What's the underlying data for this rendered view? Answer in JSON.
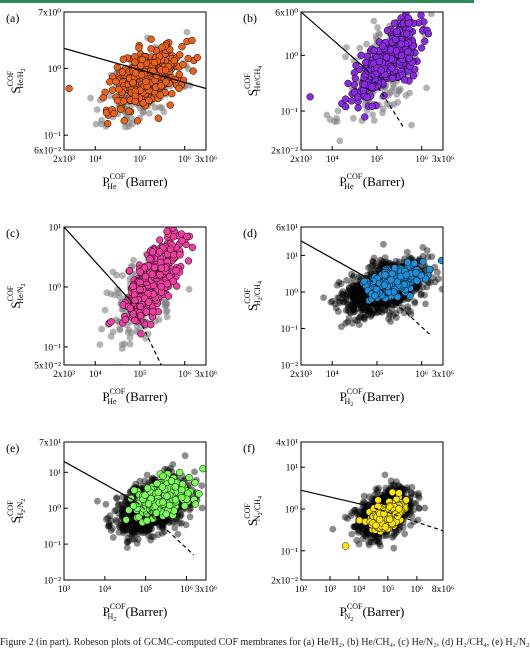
{
  "chart_data": [
    {
      "type": "scatter",
      "panel_label": "(a)",
      "xlabel": {
        "main": "P",
        "sub": "He",
        "sup": "COF",
        "unit": " (Barrer)"
      },
      "ylabel": {
        "main": "S",
        "sub": "He/H",
        "sub2": "2",
        "sup": "COF"
      },
      "xlim": [
        2000,
        3000000
      ],
      "ylim": [
        0.06,
        7
      ],
      "x_scale": "log",
      "y_scale": "log",
      "x_ticks": [
        "2x10³",
        "10⁴",
        "10⁵",
        "10⁶",
        "3x10⁶"
      ],
      "x_tick_values": [
        2000,
        10000,
        100000,
        1000000,
        3000000
      ],
      "y_ticks": [
        "6x10⁻²",
        "10⁻¹",
        "10⁰",
        "7x10⁰"
      ],
      "y_tick_values": [
        0.06,
        0.1,
        1,
        7
      ],
      "highlight_color": "#e8621a",
      "upper_bound": {
        "style": "solid",
        "points": [
          [
            2000,
            2.0
          ],
          [
            3000000,
            0.5
          ]
        ]
      },
      "series": [
        {
          "color": "#808080",
          "center": [
            120000,
            0.5
          ],
          "spread": [
            0.42,
            0.3
          ],
          "count": 180,
          "seed": 11
        },
        {
          "color": "#e8621a",
          "center": [
            150000,
            0.7
          ],
          "spread": [
            0.36,
            0.24
          ],
          "count": 380,
          "seed": 12
        }
      ],
      "outliers": [
        {
          "x": 2600,
          "y": 0.5,
          "color": "#e8621a"
        }
      ]
    },
    {
      "type": "scatter",
      "panel_label": "(b)",
      "xlabel": {
        "main": "P",
        "sub": "He",
        "sup": "COF",
        "unit": " (Barrer)"
      },
      "ylabel": {
        "main": "S",
        "sub": "He/CH",
        "sub2": "4",
        "sup": "COF"
      },
      "xlim": [
        2000,
        3000000
      ],
      "ylim": [
        0.02,
        6
      ],
      "x_scale": "log",
      "y_scale": "log",
      "x_ticks": [
        "2x10³",
        "10⁴",
        "10⁵",
        "10⁶",
        "3x10⁶"
      ],
      "x_tick_values": [
        2000,
        10000,
        100000,
        1000000,
        3000000
      ],
      "y_ticks": [
        "2x10⁻²",
        "10⁻¹",
        "10⁰",
        "6x10⁰"
      ],
      "y_tick_values": [
        0.02,
        0.1,
        1,
        6
      ],
      "highlight_color": "#8a2be2",
      "upper_bound": {
        "style": "solid",
        "points": [
          [
            2000,
            6
          ],
          [
            60000,
            0.55
          ]
        ]
      },
      "upper_bound_ext": {
        "style": "dashed",
        "points": [
          [
            60000,
            0.55
          ],
          [
            400000,
            0.05
          ]
        ]
      },
      "series": [
        {
          "color": "#808080",
          "center": [
            150000,
            0.5
          ],
          "spread": [
            0.42,
            0.45
          ],
          "count": 200,
          "seed": 21
        },
        {
          "color": "#8a2be2",
          "center": [
            180000,
            0.8
          ],
          "spread": [
            0.35,
            0.33
          ],
          "count": 380,
          "seed": 22,
          "corr": 0.7
        }
      ],
      "outliers": [
        {
          "x": 3200,
          "y": 0.18,
          "color": "#8a2be2"
        }
      ]
    },
    {
      "type": "scatter",
      "panel_label": "(c)",
      "xlabel": {
        "main": "P",
        "sub": "He",
        "sup": "COF",
        "unit": " (Barrer)"
      },
      "ylabel": {
        "main": "S",
        "sub": "He/N",
        "sub2": "2",
        "sup": "COF"
      },
      "xlim": [
        2000,
        3000000
      ],
      "ylim": [
        0.05,
        10
      ],
      "x_scale": "log",
      "y_scale": "log",
      "x_ticks": [
        "2x10³",
        "10⁴",
        "10⁵",
        "10⁶",
        "3x10⁶"
      ],
      "x_tick_values": [
        2000,
        10000,
        100000,
        1000000,
        3000000
      ],
      "y_ticks": [
        "5x10⁻²",
        "10⁻¹",
        "10⁰",
        "10¹"
      ],
      "y_tick_values": [
        0.05,
        0.1,
        1,
        10
      ],
      "highlight_color": "#ee3fa0",
      "upper_bound": {
        "style": "solid",
        "points": [
          [
            2000,
            10
          ],
          [
            60000,
            0.6
          ]
        ]
      },
      "upper_bound_ext": {
        "style": "dashed",
        "points": [
          [
            60000,
            0.6
          ],
          [
            300000,
            0.05
          ]
        ]
      },
      "series": [
        {
          "color": "#808080",
          "center": [
            100000,
            0.55
          ],
          "spread": [
            0.4,
            0.4
          ],
          "count": 180,
          "seed": 31
        },
        {
          "color": "#ee3fa0",
          "center": [
            180000,
            1.2
          ],
          "spread": [
            0.34,
            0.35
          ],
          "count": 380,
          "seed": 32,
          "corr": 0.7
        }
      ],
      "outliers": []
    },
    {
      "type": "scatter",
      "panel_label": "(d)",
      "xlabel": {
        "main": "P",
        "sub": "H",
        "sub2": "2",
        "sup": "COF",
        "unit": " (Barrer)"
      },
      "ylabel": {
        "main": "S",
        "sub": "H",
        "sub2": "2",
        "subtail": "/CH",
        "sub3": "4",
        "sup": "COF"
      },
      "xlim": [
        2000,
        3000000
      ],
      "ylim": [
        0.01,
        60
      ],
      "x_scale": "log",
      "y_scale": "log",
      "x_ticks": [
        "2x10³",
        "10⁴",
        "10⁵",
        "10⁶",
        "3x10⁶"
      ],
      "x_tick_values": [
        2000,
        10000,
        100000,
        1000000,
        3000000
      ],
      "y_ticks": [
        "10⁻²",
        "10⁻¹",
        "10⁰",
        "10¹",
        "6x10¹"
      ],
      "y_tick_values": [
        0.01,
        0.1,
        1,
        10,
        60
      ],
      "highlight_color": "#1e90d8",
      "upper_bound": {
        "style": "solid",
        "points": [
          [
            2000,
            25
          ],
          [
            70000,
            2.2
          ]
        ]
      },
      "upper_bound_ext": {
        "style": "dashed",
        "points": [
          [
            70000,
            2.2
          ],
          [
            1500000,
            0.07
          ]
        ]
      },
      "series": [
        {
          "color": "#000000",
          "center": [
            150000,
            1.3
          ],
          "spread": [
            0.45,
            0.38
          ],
          "count": 900,
          "seed": 41,
          "opacity": 0.45
        },
        {
          "color": "#1e90d8",
          "center": [
            250000,
            2.0
          ],
          "spread": [
            0.3,
            0.22
          ],
          "count": 260,
          "seed": 42
        }
      ],
      "outliers": []
    },
    {
      "type": "scatter",
      "panel_label": "(e)",
      "xlabel": {
        "main": "P",
        "sub": "H",
        "sub2": "2",
        "sup": "COF",
        "unit": " (Barrer)"
      },
      "ylabel": {
        "main": "S",
        "sub": "H",
        "sub2": "2",
        "subtail": "/N",
        "sub3": "2",
        "sup": "COF"
      },
      "xlim": [
        1000,
        3000000
      ],
      "ylim": [
        0.01,
        70
      ],
      "x_scale": "log",
      "y_scale": "log",
      "x_ticks": [
        "10³",
        "10⁴",
        "10⁵",
        "10⁶",
        "3x10⁶"
      ],
      "x_tick_values": [
        1000,
        10000,
        100000,
        1000000,
        3000000
      ],
      "y_ticks": [
        "10⁻²",
        "10⁻¹",
        "10⁰",
        "10¹",
        "7x10¹"
      ],
      "y_tick_values": [
        0.01,
        0.1,
        1,
        10,
        70
      ],
      "highlight_color": "#7cfc5a",
      "upper_bound": {
        "style": "solid",
        "points": [
          [
            1000,
            20
          ],
          [
            60000,
            1.5
          ]
        ]
      },
      "upper_bound_ext": {
        "style": "dashed",
        "points": [
          [
            60000,
            1.5
          ],
          [
            1500000,
            0.05
          ]
        ]
      },
      "series": [
        {
          "color": "#000000",
          "center": [
            150000,
            1.1
          ],
          "spread": [
            0.45,
            0.4
          ],
          "count": 900,
          "seed": 51,
          "opacity": 0.45
        },
        {
          "color": "#7cfc5a",
          "center": [
            250000,
            2.0
          ],
          "spread": [
            0.32,
            0.28
          ],
          "count": 260,
          "seed": 52
        }
      ],
      "outliers": []
    },
    {
      "type": "scatter",
      "panel_label": "(f)",
      "xlabel": {
        "main": "P",
        "sub": "N",
        "sub2": "2",
        "sup": "COF",
        "unit": " (Barrer)"
      },
      "ylabel": {
        "main": "S",
        "sub": "N",
        "sub2": "2",
        "subtail": "/CH",
        "sub3": "4",
        "sup": "COF"
      },
      "xlim": [
        100,
        8000000
      ],
      "ylim": [
        0.02,
        40
      ],
      "x_scale": "log",
      "y_scale": "log",
      "x_ticks": [
        "10²",
        "10³",
        "10⁴",
        "10⁵",
        "10⁶",
        "8x10⁶"
      ],
      "x_tick_values": [
        100,
        1000,
        10000,
        100000,
        1000000,
        8000000
      ],
      "y_ticks": [
        "2x10⁻²",
        "10⁻¹",
        "10⁰",
        "10¹",
        "4x10¹"
      ],
      "y_tick_values": [
        0.02,
        0.1,
        1,
        10,
        40
      ],
      "highlight_color": "#ffe600",
      "upper_bound": {
        "style": "solid",
        "points": [
          [
            100,
            2.8
          ],
          [
            20000,
            1.2
          ]
        ]
      },
      "upper_bound_ext": {
        "style": "dashed",
        "points": [
          [
            20000,
            1.2
          ],
          [
            8000000,
            0.3
          ]
        ]
      },
      "series": [
        {
          "color": "#000000",
          "center": [
            80000,
            0.8
          ],
          "spread": [
            0.45,
            0.28
          ],
          "count": 900,
          "seed": 61,
          "opacity": 0.45
        },
        {
          "color": "#ffe600",
          "center": [
            90000,
            0.7
          ],
          "spread": [
            0.3,
            0.16
          ],
          "count": 260,
          "seed": 62
        }
      ],
      "outliers": [
        {
          "x": 3500,
          "y": 0.13,
          "color": "#ffe600"
        }
      ]
    }
  ],
  "caption": "Figure 2 (in part). Robeson plots of GCMC-computed COF membranes for (a) He/H₂, (b) He/CH₄, (c) He/N₂, (d) H₂/CH₄, (e) H₂/N₂"
}
